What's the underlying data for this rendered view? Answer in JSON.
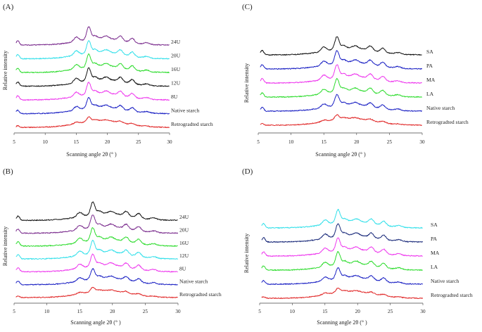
{
  "chart_data": [
    {
      "panel": "(A)",
      "type": "line",
      "title": "",
      "xlabel": "Scanning angle 2θ (° )",
      "ylabel": "Relative intensity",
      "xlim": [
        5,
        30
      ],
      "xticks": [
        5,
        10,
        15,
        20,
        25,
        30
      ],
      "grid": false,
      "series": [
        {
          "name": "24U",
          "color": "#7b2d8e",
          "offset": 6,
          "peak_scale": 1.0
        },
        {
          "name": "20U",
          "color": "#33e0ea",
          "offset": 5,
          "peak_scale": 1.0
        },
        {
          "name": "16U",
          "color": "#2edc2e",
          "offset": 4,
          "peak_scale": 1.0
        },
        {
          "name": "12U",
          "color": "#111111",
          "offset": 3,
          "peak_scale": 1.0
        },
        {
          "name": "8U",
          "color": "#ee39ee",
          "offset": 2,
          "peak_scale": 0.95
        },
        {
          "name": "Native starch",
          "color": "#1c22c4",
          "offset": 1,
          "peak_scale": 0.8
        },
        {
          "name": "Retrogradted starch",
          "color": "#e12a2a",
          "offset": 0,
          "peak_scale": 0.35
        }
      ]
    },
    {
      "panel": "(B)",
      "type": "line",
      "title": "",
      "xlabel": "Scanning angle 2θ (° )",
      "ylabel": "Relative intensity",
      "xlim": [
        5,
        30
      ],
      "xticks": [
        5,
        10,
        15,
        20,
        25,
        30
      ],
      "grid": false,
      "series": [
        {
          "name": "24U",
          "color": "#111111",
          "offset": 6,
          "peak_scale": 1.0
        },
        {
          "name": "20U",
          "color": "#7b2d8e",
          "offset": 5,
          "peak_scale": 1.0
        },
        {
          "name": "16U",
          "color": "#2edc2e",
          "offset": 4,
          "peak_scale": 1.0
        },
        {
          "name": "12U",
          "color": "#33e0ea",
          "offset": 3,
          "peak_scale": 1.0
        },
        {
          "name": "8U",
          "color": "#ee39ee",
          "offset": 2,
          "peak_scale": 0.95
        },
        {
          "name": "Native starch",
          "color": "#1c22c4",
          "offset": 1,
          "peak_scale": 0.8
        },
        {
          "name": "Retrogradted starch",
          "color": "#e12a2a",
          "offset": 0,
          "peak_scale": 0.35
        }
      ]
    },
    {
      "panel": "(C)",
      "type": "line",
      "title": "",
      "xlabel": "Scanning angle 2θ (° )",
      "ylabel": "Relative intensity",
      "xlim": [
        5,
        30
      ],
      "xticks": [
        5,
        10,
        15,
        20,
        25,
        30
      ],
      "grid": false,
      "series": [
        {
          "name": "SA",
          "color": "#111111",
          "offset": 5,
          "peak_scale": 1.0
        },
        {
          "name": "PA",
          "color": "#1c22c4",
          "offset": 4,
          "peak_scale": 1.0
        },
        {
          "name": "MA",
          "color": "#ee39ee",
          "offset": 3,
          "peak_scale": 1.0
        },
        {
          "name": "LA",
          "color": "#2edc2e",
          "offset": 2,
          "peak_scale": 1.0
        },
        {
          "name": "Native starch",
          "color": "#1c22c4",
          "offset": 1,
          "peak_scale": 0.85
        },
        {
          "name": "Retrogradted starch",
          "color": "#e12a2a",
          "offset": 0,
          "peak_scale": 0.35
        }
      ]
    },
    {
      "panel": "(D)",
      "type": "line",
      "title": "",
      "xlabel": "Scanning angle 2θ (° )",
      "ylabel": "Relative intensity",
      "xlim": [
        5,
        30
      ],
      "xticks": [
        5,
        10,
        15,
        20,
        25,
        30
      ],
      "grid": false,
      "series": [
        {
          "name": "SA",
          "color": "#33e0ea",
          "offset": 5,
          "peak_scale": 1.0
        },
        {
          "name": "PA",
          "color": "#1a2a7a",
          "offset": 4,
          "peak_scale": 1.0
        },
        {
          "name": "MA",
          "color": "#ee39ee",
          "offset": 3,
          "peak_scale": 1.0
        },
        {
          "name": "LA",
          "color": "#2edc2e",
          "offset": 2,
          "peak_scale": 1.0
        },
        {
          "name": "Native starch",
          "color": "#1c22c4",
          "offset": 1,
          "peak_scale": 0.85
        },
        {
          "name": "Retrogradted starch",
          "color": "#e12a2a",
          "offset": 0,
          "peak_scale": 0.35
        }
      ]
    }
  ],
  "peak_profile": [
    {
      "angle": 5.6,
      "height": 0.55,
      "width": 0.35
    },
    {
      "angle": 15.0,
      "height": 0.55,
      "width": 0.55
    },
    {
      "angle": 17.0,
      "height": 1.6,
      "width": 0.45
    },
    {
      "angle": 18.0,
      "height": 0.35,
      "width": 0.5
    },
    {
      "angle": 19.8,
      "height": 0.3,
      "width": 0.6
    },
    {
      "angle": 22.1,
      "height": 0.55,
      "width": 0.5
    },
    {
      "angle": 24.0,
      "height": 0.55,
      "width": 0.5
    },
    {
      "angle": 26.3,
      "height": 0.2,
      "width": 0.6
    }
  ]
}
